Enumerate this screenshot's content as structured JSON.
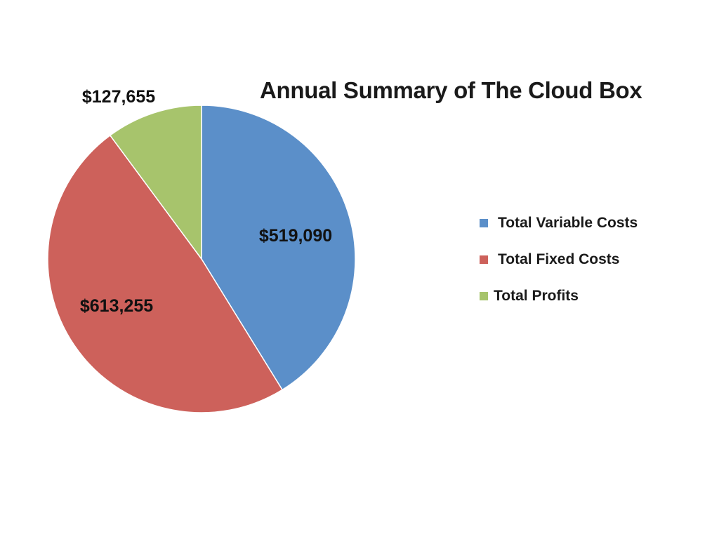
{
  "chart_data": {
    "type": "pie",
    "title": "Annual Summary of The Cloud Box",
    "start_angle_deg": 0,
    "direction": "clockwise",
    "legend_position": "right",
    "slices": [
      {
        "label": "Total Variable Costs",
        "value": 519090,
        "value_label": "$519,090",
        "color": "#5b8fc9"
      },
      {
        "label": "Total Fixed Costs",
        "value": 613255,
        "value_label": "$613,255",
        "color": "#cd615b"
      },
      {
        "label": "Total Profits",
        "value": 127655,
        "value_label": "$127,655",
        "color": "#a7c46c"
      }
    ]
  }
}
